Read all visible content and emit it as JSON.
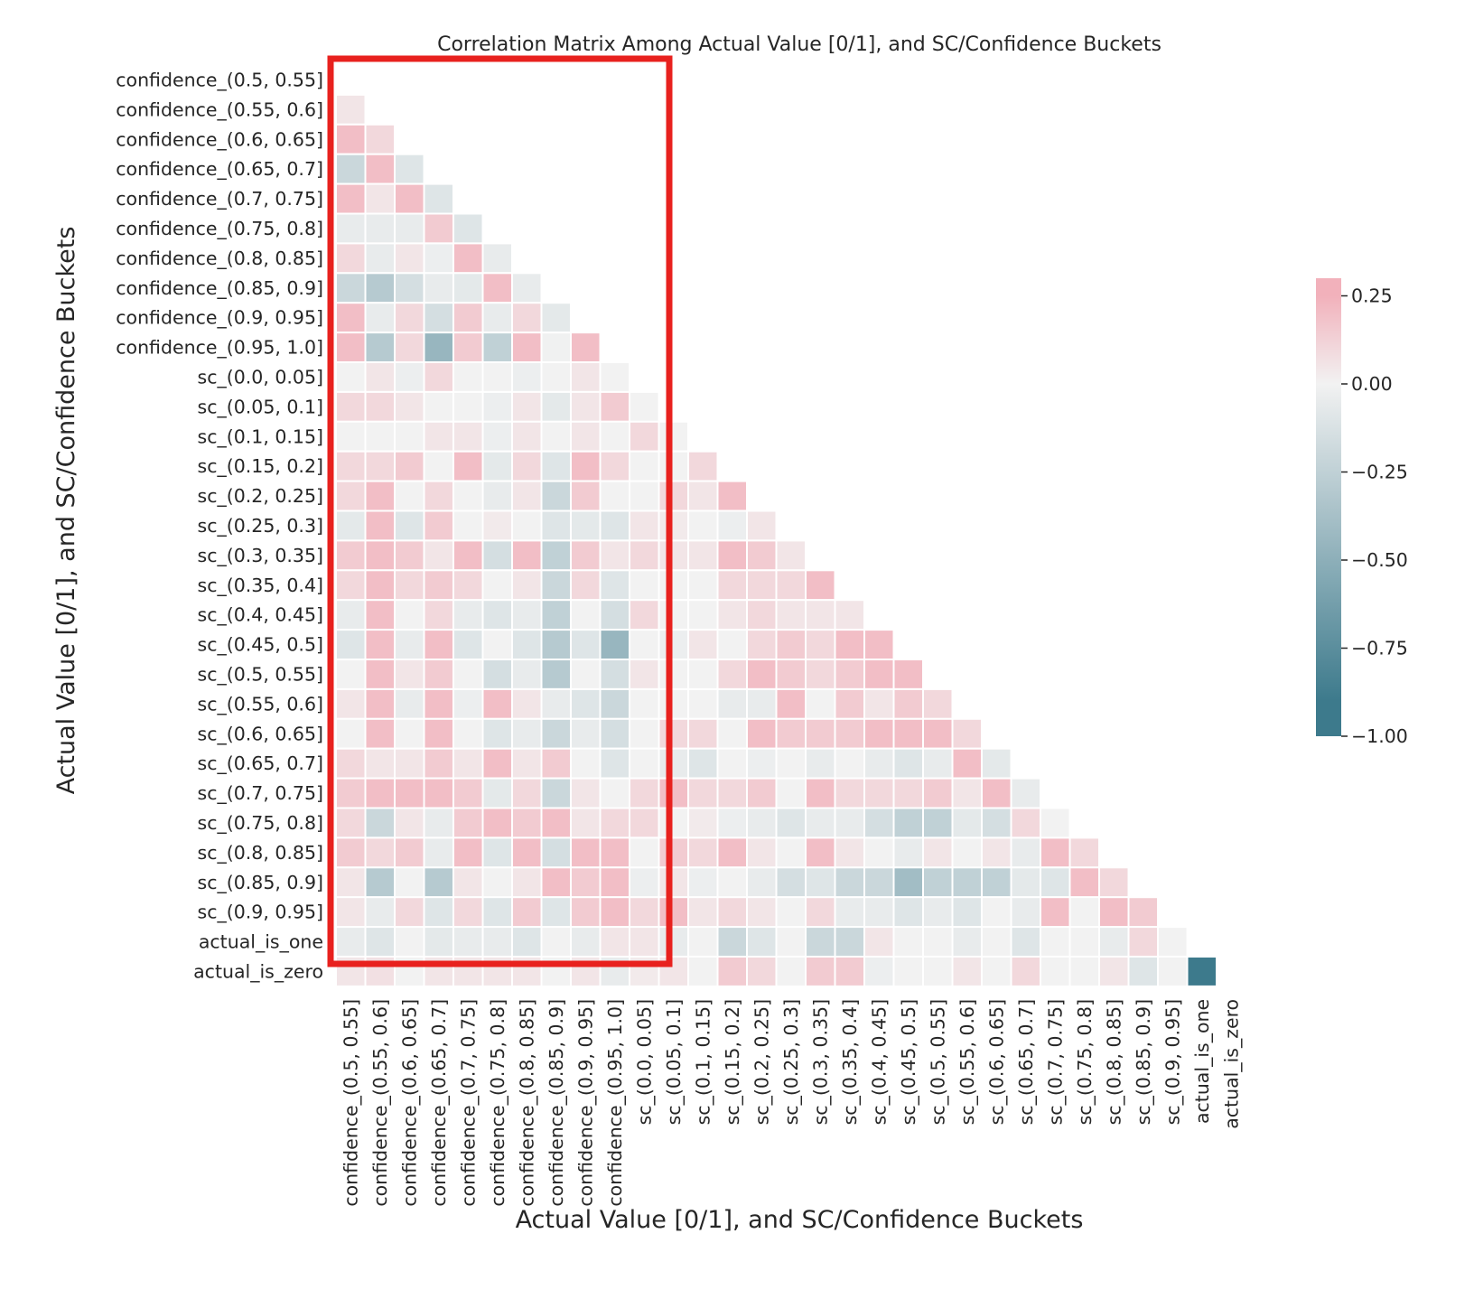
{
  "chart_data": {
    "type": "heatmap",
    "title": "Correlation Matrix Among Actual Value [0/1], and SC/Confidence Buckets",
    "xlabel": "Actual Value [0/1], and SC/Confidence Buckets",
    "ylabel": "Actual Value [0/1], and SC/Confidence Buckets",
    "mask": "upper-triangle-including-diagonal",
    "labels": [
      "confidence_(0.5, 0.55]",
      "confidence_(0.55, 0.6]",
      "confidence_(0.6, 0.65]",
      "confidence_(0.65, 0.7]",
      "confidence_(0.7, 0.75]",
      "confidence_(0.75, 0.8]",
      "confidence_(0.8, 0.85]",
      "confidence_(0.85, 0.9]",
      "confidence_(0.9, 0.95]",
      "confidence_(0.95, 1.0]",
      "sc_(0.0, 0.05]",
      "sc_(0.05, 0.1]",
      "sc_(0.1, 0.15]",
      "sc_(0.15, 0.2]",
      "sc_(0.2, 0.25]",
      "sc_(0.25, 0.3]",
      "sc_(0.3, 0.35]",
      "sc_(0.35, 0.4]",
      "sc_(0.4, 0.45]",
      "sc_(0.45, 0.5]",
      "sc_(0.5, 0.55]",
      "sc_(0.55, 0.6]",
      "sc_(0.6, 0.65]",
      "sc_(0.65, 0.7]",
      "sc_(0.7, 0.75]",
      "sc_(0.75, 0.8]",
      "sc_(0.8, 0.85]",
      "sc_(0.85, 0.9]",
      "sc_(0.9, 0.95]",
      "actual_is_one",
      "actual_is_zero"
    ],
    "values": [
      [],
      [
        0.05
      ],
      [
        0.2,
        0.1
      ],
      [
        -0.2,
        0.2,
        -0.1
      ],
      [
        0.2,
        0.05,
        0.2,
        -0.1
      ],
      [
        -0.05,
        -0.05,
        -0.05,
        0.15,
        -0.1
      ],
      [
        0.1,
        -0.05,
        0.05,
        -0.03,
        0.2,
        -0.05
      ],
      [
        -0.2,
        -0.3,
        -0.15,
        -0.05,
        -0.07,
        0.2,
        -0.05
      ],
      [
        0.2,
        -0.05,
        0.1,
        -0.15,
        0.15,
        -0.05,
        0.1,
        -0.07
      ],
      [
        0.2,
        -0.3,
        0.1,
        -0.45,
        0.15,
        -0.25,
        0.2,
        -0.01,
        0.2
      ],
      [
        0.0,
        0.05,
        -0.03,
        0.1,
        0.0,
        0.0,
        -0.03,
        0.0,
        0.05,
        0.0
      ],
      [
        0.1,
        0.1,
        0.05,
        0.0,
        0.0,
        -0.03,
        0.05,
        -0.07,
        0.05,
        0.15,
        0.0
      ],
      [
        0.0,
        0.0,
        0.0,
        0.05,
        0.05,
        -0.03,
        0.05,
        0.0,
        0.05,
        0.0,
        0.1,
        0.0
      ],
      [
        0.1,
        0.1,
        0.15,
        0.0,
        0.2,
        -0.07,
        0.1,
        -0.1,
        0.2,
        0.1,
        0.0,
        0.0,
        0.1
      ],
      [
        0.1,
        0.2,
        0.0,
        0.1,
        0.0,
        -0.05,
        0.05,
        -0.2,
        0.15,
        0.0,
        0.0,
        0.1,
        0.05,
        0.2
      ],
      [
        -0.07,
        0.2,
        -0.1,
        0.15,
        0.0,
        0.03,
        0.0,
        -0.1,
        -0.07,
        -0.1,
        0.05,
        0.03,
        0.0,
        -0.03,
        0.05
      ],
      [
        0.15,
        0.2,
        0.15,
        0.05,
        0.2,
        -0.15,
        0.2,
        -0.25,
        0.15,
        0.05,
        0.1,
        0.05,
        0.05,
        0.2,
        0.15,
        0.05
      ],
      [
        0.1,
        0.2,
        0.1,
        0.15,
        0.1,
        0.0,
        0.05,
        -0.2,
        0.1,
        -0.1,
        0.0,
        0.0,
        0.0,
        0.1,
        0.1,
        0.1,
        0.2
      ],
      [
        -0.05,
        0.2,
        0.0,
        0.1,
        -0.05,
        -0.1,
        -0.05,
        -0.25,
        0.0,
        -0.15,
        0.1,
        0.0,
        0.0,
        0.05,
        0.1,
        0.05,
        0.05,
        0.05
      ],
      [
        -0.1,
        0.2,
        -0.05,
        0.2,
        -0.1,
        0.0,
        -0.1,
        -0.3,
        -0.1,
        -0.45,
        0.0,
        -0.03,
        0.05,
        0.0,
        0.1,
        0.15,
        0.1,
        0.2,
        0.2
      ],
      [
        0.0,
        0.2,
        0.05,
        0.15,
        0.0,
        -0.15,
        -0.05,
        -0.3,
        0.0,
        -0.15,
        0.05,
        0.0,
        0.0,
        0.1,
        0.2,
        0.15,
        0.1,
        0.15,
        0.2,
        0.2
      ],
      [
        0.05,
        0.2,
        -0.05,
        0.2,
        -0.03,
        0.2,
        0.05,
        -0.05,
        -0.1,
        -0.2,
        0.0,
        0.0,
        0.0,
        -0.05,
        -0.05,
        0.2,
        0.0,
        0.15,
        0.05,
        0.15,
        0.1
      ],
      [
        0.0,
        0.2,
        0.0,
        0.2,
        0.0,
        -0.1,
        -0.05,
        -0.2,
        -0.05,
        -0.15,
        0.0,
        0.1,
        0.1,
        0.0,
        0.2,
        0.15,
        0.15,
        0.15,
        0.2,
        0.2,
        0.2,
        0.1
      ],
      [
        0.1,
        0.05,
        0.05,
        0.15,
        0.05,
        0.2,
        0.05,
        0.15,
        0.0,
        -0.1,
        0.0,
        -0.05,
        -0.1,
        0.0,
        -0.03,
        0.0,
        -0.05,
        0.0,
        -0.05,
        -0.1,
        -0.05,
        0.2,
        -0.07
      ],
      [
        0.15,
        0.2,
        0.2,
        0.2,
        0.15,
        -0.07,
        0.1,
        -0.2,
        0.05,
        0.0,
        0.1,
        0.2,
        0.1,
        0.1,
        0.15,
        0.0,
        0.2,
        0.1,
        0.1,
        0.1,
        0.15,
        0.05,
        0.2,
        -0.05
      ],
      [
        0.1,
        -0.2,
        0.05,
        -0.05,
        0.15,
        0.2,
        0.15,
        0.2,
        0.05,
        0.1,
        0.1,
        0.0,
        0.03,
        -0.03,
        -0.05,
        -0.1,
        -0.05,
        -0.05,
        -0.15,
        -0.25,
        -0.25,
        -0.07,
        -0.15,
        0.1,
        0.0
      ],
      [
        0.15,
        0.1,
        0.15,
        -0.05,
        0.2,
        -0.1,
        0.2,
        -0.15,
        0.2,
        0.2,
        0.0,
        0.15,
        0.1,
        0.2,
        0.05,
        0.0,
        0.2,
        0.05,
        0.0,
        -0.05,
        0.05,
        0.0,
        0.05,
        -0.05,
        0.2,
        0.1
      ],
      [
        0.05,
        -0.3,
        0.0,
        -0.3,
        0.05,
        0.0,
        0.05,
        0.2,
        0.15,
        0.2,
        -0.03,
        0.05,
        -0.03,
        0.0,
        -0.05,
        -0.15,
        -0.1,
        -0.2,
        -0.2,
        -0.4,
        -0.25,
        -0.25,
        -0.25,
        -0.07,
        -0.1,
        0.2,
        0.1
      ],
      [
        0.05,
        -0.05,
        0.1,
        -0.1,
        0.1,
        -0.1,
        0.15,
        -0.1,
        0.15,
        0.2,
        0.1,
        0.2,
        0.05,
        0.1,
        0.05,
        0.0,
        0.1,
        -0.05,
        -0.05,
        -0.1,
        -0.05,
        -0.1,
        0.0,
        -0.05,
        0.2,
        0.0,
        0.2,
        0.15
      ],
      [
        -0.05,
        -0.1,
        0.0,
        -0.07,
        -0.05,
        -0.05,
        -0.1,
        0.0,
        -0.05,
        0.05,
        0.05,
        -0.05,
        0.0,
        -0.2,
        -0.1,
        0.0,
        -0.2,
        -0.2,
        0.05,
        0.0,
        0.0,
        -0.05,
        0.0,
        -0.1,
        0.0,
        0.0,
        -0.05,
        0.1,
        0.0
      ],
      [
        0.05,
        0.07,
        0.0,
        0.05,
        0.05,
        0.05,
        0.05,
        0.0,
        0.05,
        -0.05,
        0.03,
        0.05,
        0.0,
        0.15,
        0.1,
        0.0,
        0.15,
        0.15,
        -0.03,
        0.0,
        0.0,
        0.05,
        0.0,
        0.1,
        0.0,
        0.0,
        0.05,
        -0.1,
        0.0,
        -1.0
      ]
    ],
    "colorbar": {
      "range": [
        -1.0,
        0.3
      ],
      "ticks": [
        "0.25",
        "0.00",
        "−0.25",
        "−0.50",
        "−0.75",
        "−1.00"
      ],
      "tick_values": [
        0.25,
        0.0,
        -0.25,
        -0.5,
        -0.75,
        -1.0
      ],
      "color_negative": "#3d7a8c",
      "color_center": "#f2f2f2",
      "color_positive": "#f2b1bb"
    },
    "grid": false,
    "highlight": {
      "description_columns": "confidence_(0.5, 0.55] to sc_(0.0, 0.05]",
      "color": "#e8211e"
    }
  }
}
